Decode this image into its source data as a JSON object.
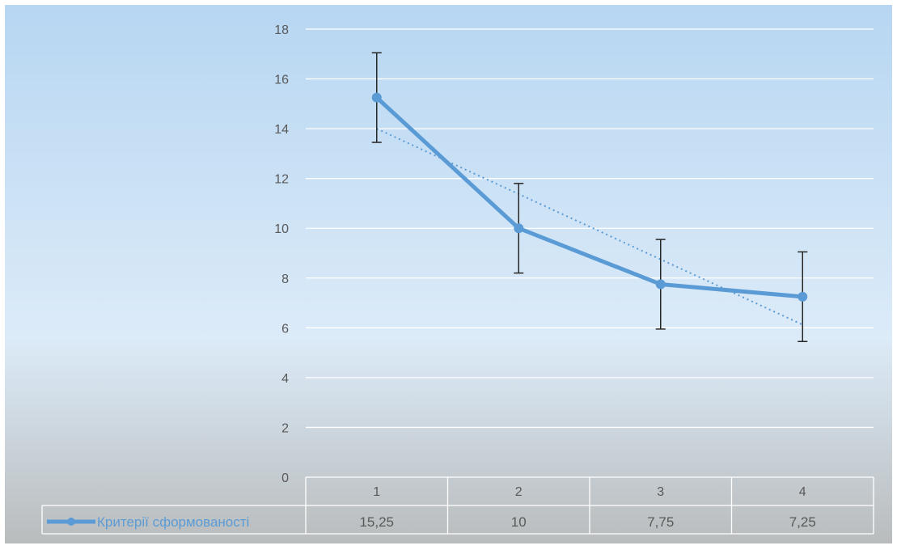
{
  "chart_data": {
    "type": "line",
    "categories": [
      "1",
      "2",
      "3",
      "4"
    ],
    "series": [
      {
        "name": "Критерії сформованості",
        "values": [
          15.25,
          10,
          7.75,
          7.25
        ],
        "value_labels": [
          "15,25",
          "10",
          "7,75",
          "7,25"
        ],
        "error_bars": {
          "plus": 1.8,
          "minus": 1.8
        },
        "color": "#5b9bd5"
      }
    ],
    "trendline": {
      "type": "linear",
      "style": "dotted",
      "color": "#5b9bd5"
    },
    "ylim": [
      0,
      18
    ],
    "yticks": [
      0,
      2,
      4,
      6,
      8,
      10,
      12,
      14,
      16,
      18
    ],
    "grid": true,
    "data_table": true,
    "legend_in_table": true,
    "background_colors": {
      "top": "#b7d6f2",
      "middle": "#dcebf8",
      "bottom": "#b9bcbd"
    }
  }
}
